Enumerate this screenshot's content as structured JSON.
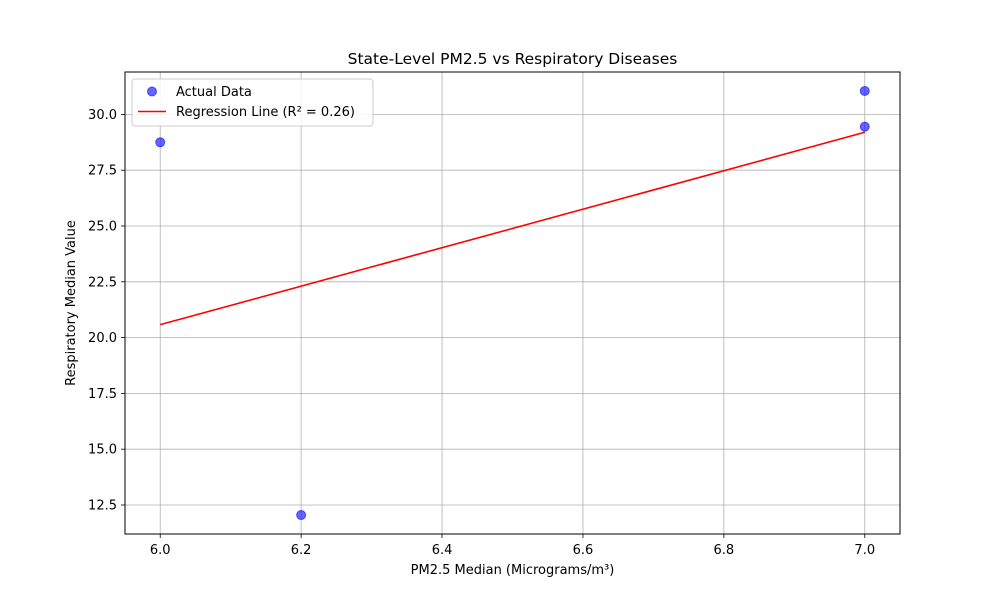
{
  "chart_data": {
    "type": "scatter",
    "title": "State-Level PM2.5 vs Respiratory Diseases",
    "xlabel": "PM2.5 Median (Micrograms/m³)",
    "ylabel": "Respiratory Median Value",
    "xlim": [
      5.95,
      7.05
    ],
    "ylim": [
      11.2,
      31.9
    ],
    "xticks": [
      6.0,
      6.2,
      6.4,
      6.6,
      6.8,
      7.0
    ],
    "xtick_labels": [
      "6.0",
      "6.2",
      "6.4",
      "6.6",
      "6.8",
      "7.0"
    ],
    "yticks": [
      12.5,
      15.0,
      17.5,
      20.0,
      22.5,
      25.0,
      27.5,
      30.0
    ],
    "ytick_labels": [
      "12.5",
      "15.0",
      "17.5",
      "20.0",
      "22.5",
      "25.0",
      "27.5",
      "30.0"
    ],
    "grid": true,
    "legend_position": "top-left",
    "series": [
      {
        "name": "Actual Data",
        "kind": "scatter",
        "color": "#0000ff",
        "points": [
          {
            "x": 6.0,
            "y": 28.75
          },
          {
            "x": 6.2,
            "y": 12.05
          },
          {
            "x": 7.0,
            "y": 31.05
          },
          {
            "x": 7.0,
            "y": 29.45
          }
        ]
      },
      {
        "name": "Regression Line (R² = 0.26)",
        "kind": "line",
        "color": "#ff0000",
        "points": [
          {
            "x": 6.0,
            "y": 20.58
          },
          {
            "x": 7.0,
            "y": 29.2
          }
        ]
      }
    ]
  }
}
